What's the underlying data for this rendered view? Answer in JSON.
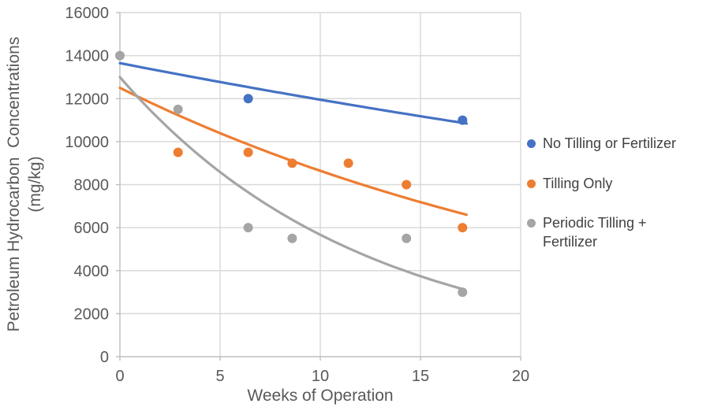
{
  "chart_data": {
    "type": "scatter",
    "title": "",
    "xlabel": "Weeks of Operation",
    "ylabel_line1": "Petroleum Hydrocarbon  Concentrations",
    "ylabel_line2": "(mg/kg)",
    "xlim": [
      0,
      20
    ],
    "ylim": [
      0,
      16000
    ],
    "x_ticks": [
      0,
      5,
      10,
      15,
      20
    ],
    "y_ticks": [
      0,
      2000,
      4000,
      6000,
      8000,
      10000,
      12000,
      14000,
      16000
    ],
    "grid": true,
    "legend_position": "right",
    "colors": {
      "gridline": "#D9D9D9",
      "axis": "#BFBFBF",
      "tick_text": "#595959",
      "title_text": "#595959",
      "legend_text": "#404040",
      "background": "#FFFFFF"
    },
    "series": [
      {
        "name": "No Tilling or Fertilizer",
        "legend_lines": [
          "No Tilling or Fertilizer"
        ],
        "color": "#4472C4",
        "points": [
          [
            6.4,
            12000
          ],
          [
            17.1,
            11000
          ]
        ],
        "trend": {
          "type": "exponential",
          "a": 13650,
          "b": -0.0133,
          "x_start": 0,
          "x_end": 17.3
        }
      },
      {
        "name": "Tilling Only",
        "legend_lines": [
          "Tilling Only"
        ],
        "color": "#ED7D31",
        "points": [
          [
            2.9,
            9500
          ],
          [
            6.4,
            9500
          ],
          [
            8.6,
            9000
          ],
          [
            11.4,
            9000
          ],
          [
            14.3,
            8000
          ],
          [
            17.1,
            6000
          ]
        ],
        "trend": {
          "type": "exponential",
          "a": 12500,
          "b": -0.0369,
          "x_start": 0,
          "x_end": 17.3
        }
      },
      {
        "name": "Periodic Tilling + Fertilizer",
        "legend_lines": [
          "Periodic Tilling +",
          "Fertilizer"
        ],
        "color": "#A5A5A5",
        "points": [
          [
            0,
            14000
          ],
          [
            2.9,
            11500
          ],
          [
            6.4,
            6000
          ],
          [
            8.6,
            5500
          ],
          [
            14.3,
            5500
          ],
          [
            17.1,
            3000
          ]
        ],
        "trend": {
          "type": "exponential",
          "a": 13000,
          "b": -0.083,
          "x_start": 0,
          "x_end": 17.2
        }
      }
    ]
  }
}
